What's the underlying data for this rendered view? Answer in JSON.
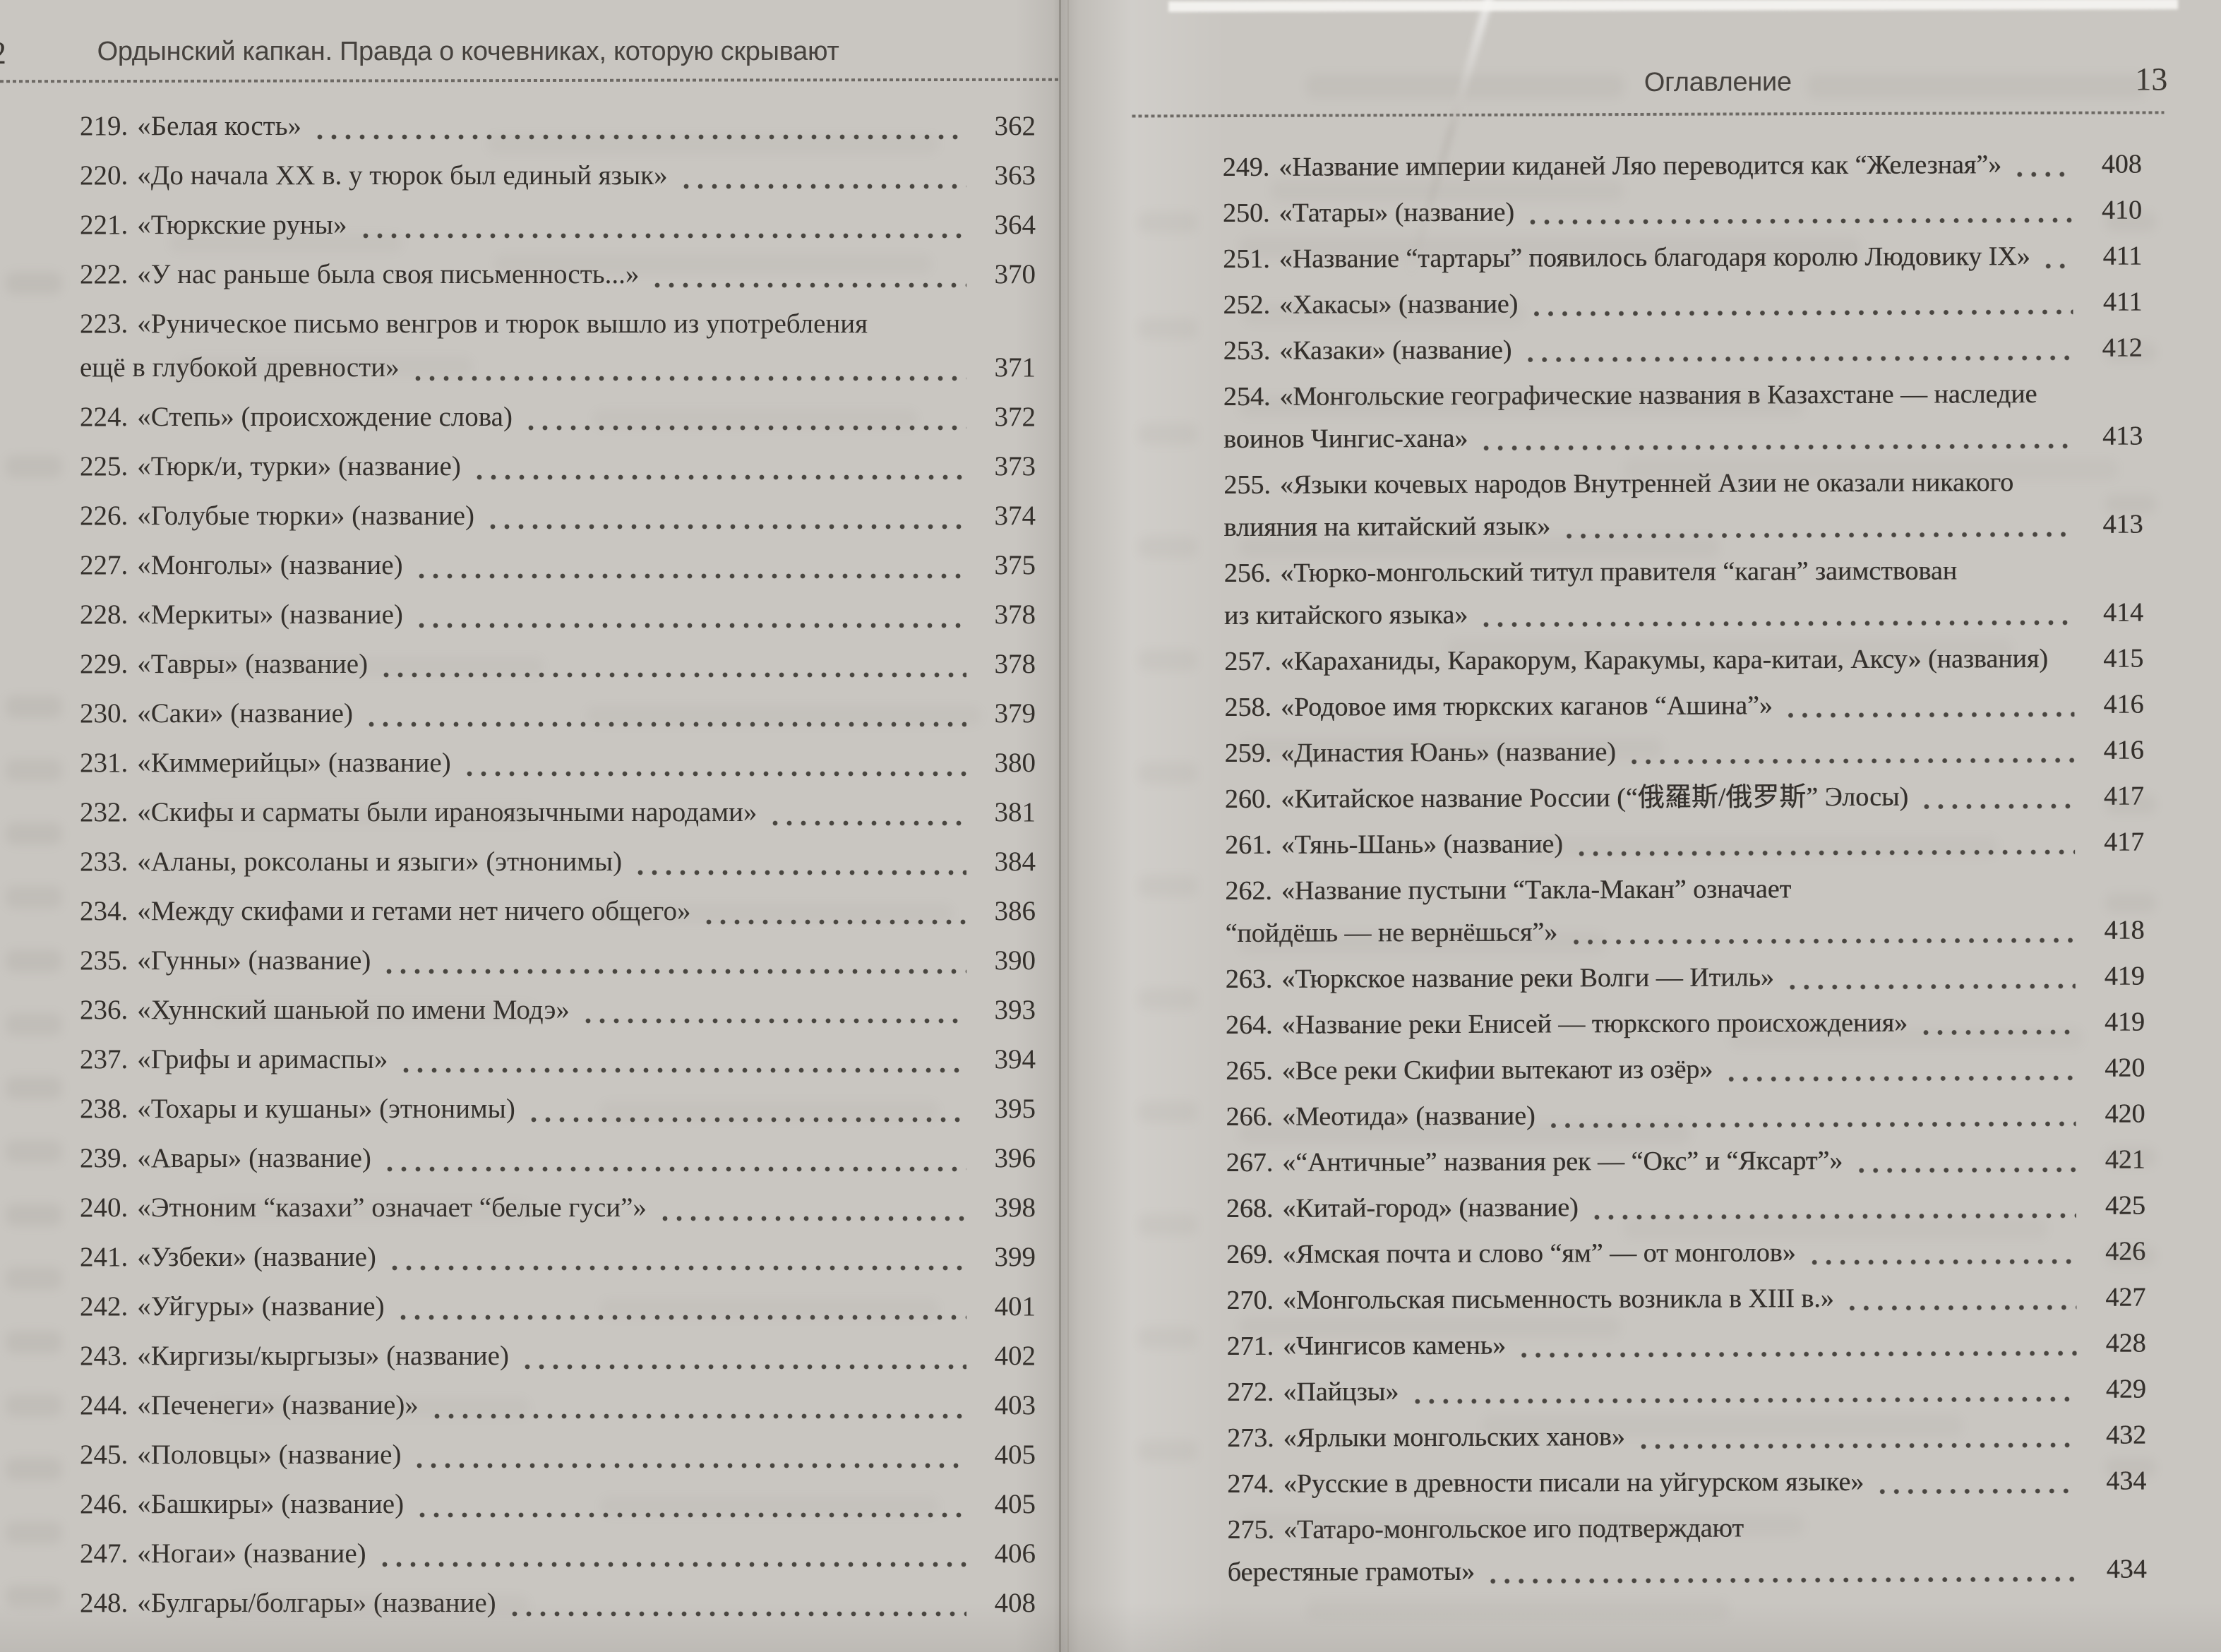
{
  "left_page": {
    "running_title": "Ордынский капкан. Правда о кочевниках, которую скрывают",
    "page_number": "2",
    "entries": [
      {
        "num": "219.",
        "title": "«Белая кость»",
        "page": "362"
      },
      {
        "num": "220.",
        "title": "«До начала XX в. у тюрок был единый язык»",
        "page": "363"
      },
      {
        "num": "221.",
        "title": "«Тюркские руны»",
        "page": "364"
      },
      {
        "num": "222.",
        "title": "«У нас раньше была своя письменность...»",
        "page": "370"
      },
      {
        "num": "223.",
        "title": "«Руническое письмо венгров и тюрок вышло из употребления",
        "title2": "ещё в глубокой древности»",
        "page": "371"
      },
      {
        "num": "224.",
        "title": "«Степь» (происхождение слова)",
        "page": "372"
      },
      {
        "num": "225.",
        "title": "«Тюрк/и, турки» (название)",
        "page": "373"
      },
      {
        "num": "226.",
        "title": "«Голубые тюрки» (название)",
        "page": "374"
      },
      {
        "num": "227.",
        "title": "«Монголы» (название)",
        "page": "375"
      },
      {
        "num": "228.",
        "title": "«Меркиты» (название)",
        "page": "378"
      },
      {
        "num": "229.",
        "title": "«Тавры» (название)",
        "page": "378"
      },
      {
        "num": "230.",
        "title": "«Саки» (название)",
        "page": "379"
      },
      {
        "num": "231.",
        "title": "«Киммерийцы» (название)",
        "page": "380"
      },
      {
        "num": "232.",
        "title": "«Скифы и сарматы были ираноязычными народами»",
        "page": "381"
      },
      {
        "num": "233.",
        "title": "«Аланы, роксоланы и языги» (этнонимы)",
        "page": "384"
      },
      {
        "num": "234.",
        "title": "«Между скифами и гетами нет ничего общего»",
        "page": "386"
      },
      {
        "num": "235.",
        "title": "«Гунны» (название)",
        "page": "390"
      },
      {
        "num": "236.",
        "title": "«Хуннский шаньюй по имени Модэ»",
        "page": "393"
      },
      {
        "num": "237.",
        "title": "«Грифы и аримаспы»",
        "page": "394"
      },
      {
        "num": "238.",
        "title": "«Тохары и кушаны» (этнонимы)",
        "page": "395"
      },
      {
        "num": "239.",
        "title": "«Авары» (название)",
        "page": "396"
      },
      {
        "num": "240.",
        "title": "«Этноним “казахи” означает “белые гуси”»",
        "page": "398"
      },
      {
        "num": "241.",
        "title": "«Узбеки» (название)",
        "page": "399"
      },
      {
        "num": "242.",
        "title": "«Уйгуры» (название)",
        "page": "401"
      },
      {
        "num": "243.",
        "title": "«Киргизы/кыргызы» (название)",
        "page": "402"
      },
      {
        "num": "244.",
        "title": "«Печенеги» (название)»",
        "page": "403"
      },
      {
        "num": "245.",
        "title": "«Половцы» (название)",
        "page": "405"
      },
      {
        "num": "246.",
        "title": "«Башкиры» (название)",
        "page": "405"
      },
      {
        "num": "247.",
        "title": "«Ногаи» (название)",
        "page": "406"
      },
      {
        "num": "248.",
        "title": "«Булгары/болгары» (название)",
        "page": "408"
      }
    ]
  },
  "right_page": {
    "running_title": "Оглавление",
    "page_number": "13",
    "entries": [
      {
        "num": "249.",
        "title": "«Название империи киданей Ляо переводится как “Железная”»",
        "page": "408"
      },
      {
        "num": "250.",
        "title": "«Татары» (название)",
        "page": "410"
      },
      {
        "num": "251.",
        "title": "«Название “тартары” появилось благодаря королю Людовику IX»",
        "page": "411"
      },
      {
        "num": "252.",
        "title": "«Хакасы» (название)",
        "page": "411"
      },
      {
        "num": "253.",
        "title": "«Казаки» (название)",
        "page": "412"
      },
      {
        "num": "254.",
        "title": "«Монгольские географические названия в Казахстане — наследие",
        "title2": "воинов Чингис-хана»",
        "page": "413"
      },
      {
        "num": "255.",
        "title": "«Языки кочевых народов Внутренней Азии не оказали никакого",
        "title2": "влияния на китайский язык»",
        "page": "413"
      },
      {
        "num": "256.",
        "title": "«Тюрко-монгольский титул правителя “каган” заимствован",
        "title2": "из китайского языка»",
        "page": "414"
      },
      {
        "num": "257.",
        "title": "«Караханиды, Каракорум, Каракумы, кара-китаи, Аксу» (названия)",
        "page": "415",
        "leader": false
      },
      {
        "num": "258.",
        "title": "«Родовое имя тюркских каганов “Ашина”»",
        "page": "416"
      },
      {
        "num": "259.",
        "title": "«Династия Юань» (название)",
        "page": "416"
      },
      {
        "num": "260.",
        "title": "«Китайское название России (“俄羅斯/俄罗斯” Элосы)",
        "page": "417"
      },
      {
        "num": "261.",
        "title": "«Тянь-Шань» (название)",
        "page": "417"
      },
      {
        "num": "262.",
        "title": "«Название пустыни “Такла-Макан” означает",
        "title2": "“пойдёшь — не вернёшься”»",
        "page": "418"
      },
      {
        "num": "263.",
        "title": "«Тюркское название реки Волги — Итиль»",
        "page": "419"
      },
      {
        "num": "264.",
        "title": "«Название реки Енисей — тюркского происхождения»",
        "page": "419"
      },
      {
        "num": "265.",
        "title": "«Все реки Скифии вытекают из озёр»",
        "page": "420"
      },
      {
        "num": "266.",
        "title": "«Меотида» (название)",
        "page": "420"
      },
      {
        "num": "267.",
        "title": "«“Античные” названия рек — “Окс” и “Яксарт”»",
        "page": "421"
      },
      {
        "num": "268.",
        "title": "«Китай-город» (название)",
        "page": "425"
      },
      {
        "num": "269.",
        "title": "«Ямская почта и слово “ям” — от монголов»",
        "page": "426"
      },
      {
        "num": "270.",
        "title": "«Монгольская письменность возникла в XIII в.»",
        "page": "427"
      },
      {
        "num": "271.",
        "title": "«Чингисов камень»",
        "page": "428"
      },
      {
        "num": "272.",
        "title": "«Пайцзы»",
        "page": "429"
      },
      {
        "num": "273.",
        "title": "«Ярлыки монгольских ханов»",
        "page": "432"
      },
      {
        "num": "274.",
        "title": "«Русские в древности писали на уйгурском языке»",
        "page": "434"
      },
      {
        "num": "275.",
        "title": "«Татаро-монгольское иго подтверждают",
        "title2": "берестяные грамоты»",
        "page": "434"
      }
    ]
  },
  "colors": {
    "paper": "#e9e7e3",
    "ink": "#34302c",
    "header_ink": "#46423e",
    "leader_dot": "#38342f"
  }
}
